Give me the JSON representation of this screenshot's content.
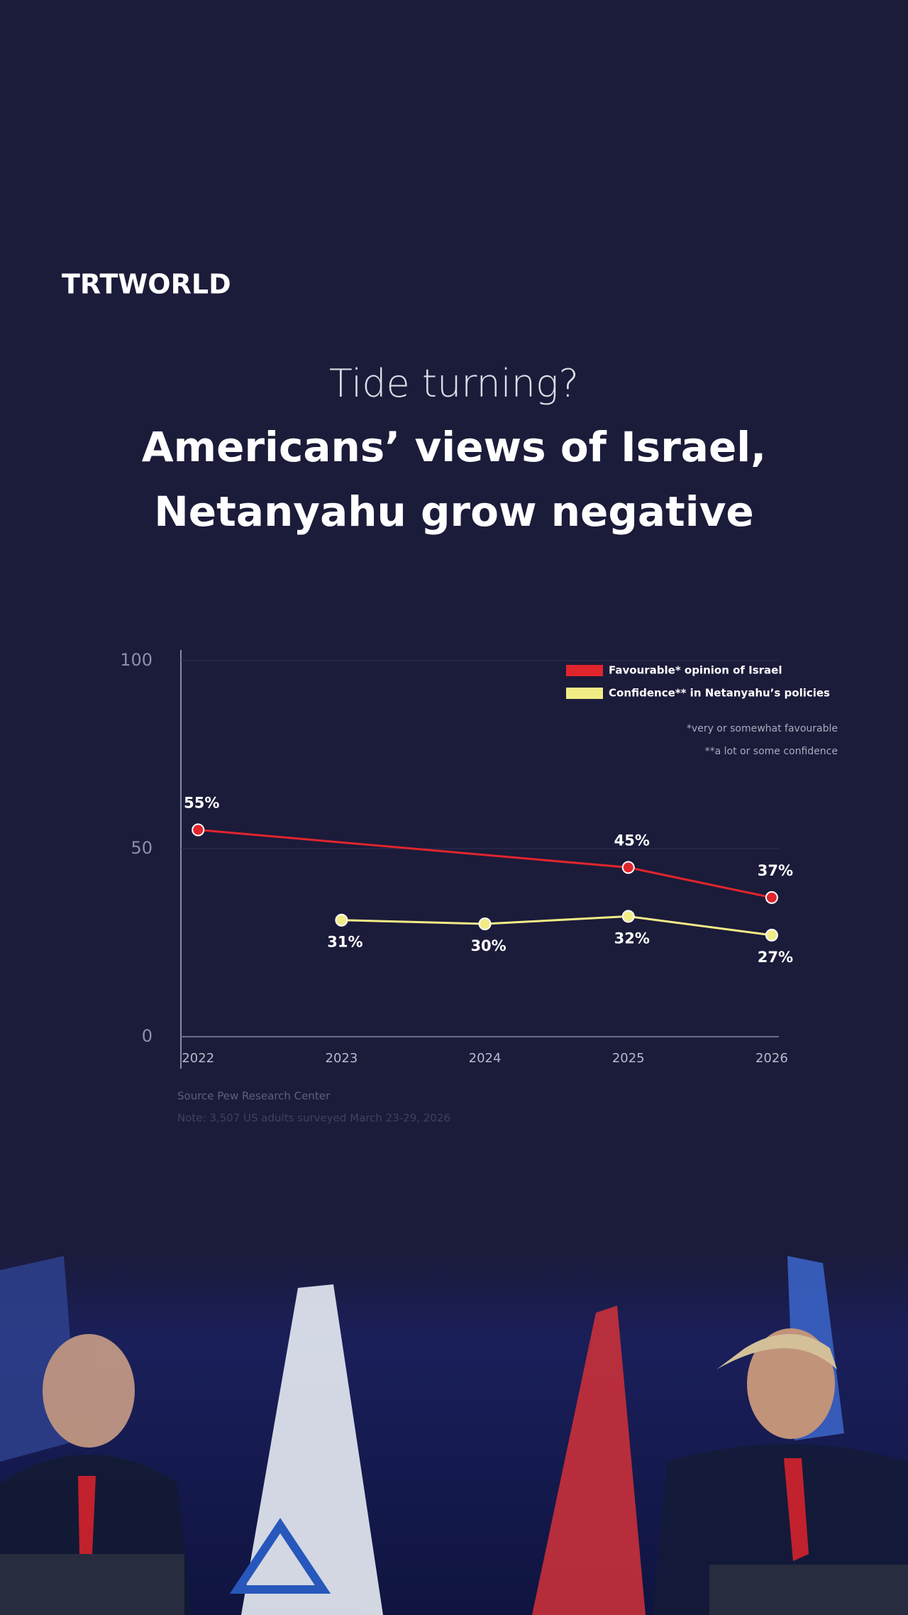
{
  "brand": "TRTWORLD",
  "chart_data": {
    "type": "line",
    "pretitle": "Tide turning?",
    "title": [
      "Americans’ views of Israel,",
      "Netanyahu grow negative"
    ],
    "xlim": [
      2021.88,
      2026.05
    ],
    "xticks": [
      2022,
      2023,
      2024,
      2025,
      2026
    ],
    "ylim": [
      0,
      100
    ],
    "yticks": [
      0,
      50,
      100
    ],
    "grid": true,
    "legend": "top-right",
    "series": [
      {
        "name": "Favourable* opinion of Israel",
        "color": "#e0252c",
        "x": [
          2022,
          2025,
          2026
        ],
        "values": [
          55,
          45,
          37
        ],
        "value_labels": [
          "55%",
          "45%",
          "37%"
        ],
        "label_position": "above"
      },
      {
        "name": "Confidence** in Netanyahu’s policies",
        "color": "#f2ec86",
        "x": [
          2023,
          2024,
          2025,
          2026
        ],
        "values": [
          31,
          30,
          32,
          27
        ],
        "value_labels": [
          "31%",
          "30%",
          "32%",
          "27%"
        ],
        "label_position": "below"
      }
    ],
    "notes": [
      "*very or somewhat favourable",
      "**a lot or some confidence"
    ],
    "source": "Source Pew Research Center",
    "footnote": "Note: 3,507 US adults surveyed March 23-29, 2026"
  }
}
